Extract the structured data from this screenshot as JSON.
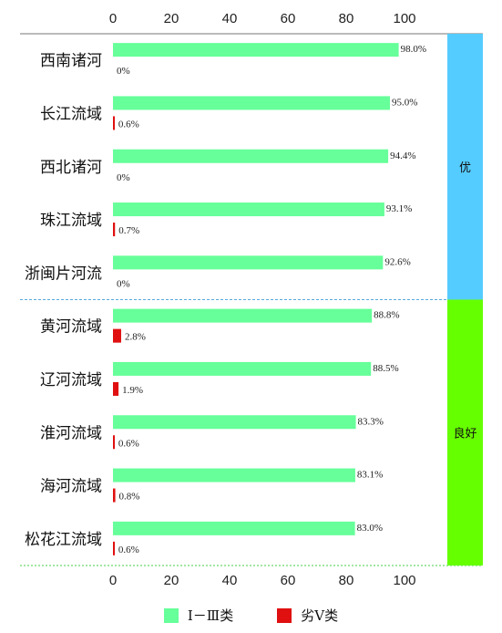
{
  "chart_data": {
    "type": "bar",
    "orientation": "horizontal",
    "xlim": [
      0,
      100
    ],
    "xticks": [
      0,
      20,
      40,
      60,
      80,
      100
    ],
    "categories": [
      "西南诸河",
      "长江流域",
      "西北诸河",
      "珠江流域",
      "浙闽片河流",
      "黄河流域",
      "辽河流域",
      "淮河流域",
      "海河流域",
      "松花江流域"
    ],
    "series": [
      {
        "name": "Ⅰ－Ⅲ类",
        "color": "#66ff99",
        "values": [
          98.0,
          95.0,
          94.4,
          93.1,
          92.6,
          88.8,
          88.5,
          83.3,
          83.1,
          83.0
        ],
        "labels": [
          "98.0%",
          "95.0%",
          "94.4%",
          "93.1%",
          "92.6%",
          "88.8%",
          "88.5%",
          "83.3%",
          "83.1%",
          "83.0%"
        ]
      },
      {
        "name": "劣Ⅴ类",
        "color": "#e01010",
        "values": [
          0,
          0.6,
          0,
          0.7,
          0,
          2.8,
          1.9,
          0.6,
          0.8,
          0.6
        ],
        "labels": [
          "0%",
          "0.6%",
          "0%",
          "0.7%",
          "0%",
          "2.8%",
          "1.9%",
          "0.6%",
          "0.8%",
          "0.6%"
        ]
      }
    ],
    "groups": [
      {
        "label": "优",
        "color": "#55ccff",
        "count": 5
      },
      {
        "label": "良好",
        "color": "#66ff00",
        "count": 5
      }
    ],
    "legend": "bottom"
  }
}
